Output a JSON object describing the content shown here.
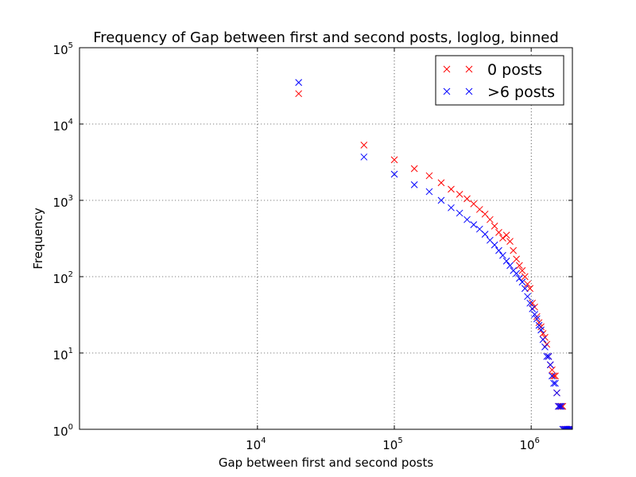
{
  "chart_data": {
    "type": "scatter",
    "title": "Frequency of Gap between first and second posts, loglog, binned",
    "xlabel": "Gap between first and second posts",
    "ylabel": "Frequency",
    "xscale": "log",
    "yscale": "log",
    "grid": true,
    "legend_position": "top-right",
    "xlim": [
      501,
      2000000
    ],
    "ylim": [
      1,
      100000
    ],
    "x_ticks": [
      {
        "base": "10",
        "exp": "4",
        "value": 10000
      },
      {
        "base": "10",
        "exp": "5",
        "value": 100000
      },
      {
        "base": "10",
        "exp": "6",
        "value": 1000000
      }
    ],
    "y_ticks": [
      {
        "base": "10",
        "exp": "0",
        "value": 1
      },
      {
        "base": "10",
        "exp": "1",
        "value": 10
      },
      {
        "base": "10",
        "exp": "2",
        "value": 100
      },
      {
        "base": "10",
        "exp": "3",
        "value": 1000
      },
      {
        "base": "10",
        "exp": "4",
        "value": 10000
      },
      {
        "base": "10",
        "exp": "5",
        "value": 100000
      }
    ],
    "series": [
      {
        "name": "0 posts",
        "color": "#ff0000",
        "marker": "x",
        "points": [
          [
            20000,
            25000
          ],
          [
            60000,
            5300
          ],
          [
            100000,
            3400
          ],
          [
            140000,
            2600
          ],
          [
            180000,
            2100
          ],
          [
            220000,
            1700
          ],
          [
            260000,
            1400
          ],
          [
            300000,
            1200
          ],
          [
            340000,
            1050
          ],
          [
            380000,
            900
          ],
          [
            420000,
            760
          ],
          [
            460000,
            660
          ],
          [
            500000,
            560
          ],
          [
            540000,
            460
          ],
          [
            580000,
            380
          ],
          [
            620000,
            320
          ],
          [
            660000,
            350
          ],
          [
            700000,
            290
          ],
          [
            740000,
            220
          ],
          [
            780000,
            170
          ],
          [
            820000,
            140
          ],
          [
            860000,
            120
          ],
          [
            900000,
            100
          ],
          [
            940000,
            80
          ],
          [
            980000,
            70
          ],
          [
            1020000,
            45
          ],
          [
            1060000,
            40
          ],
          [
            1100000,
            30
          ],
          [
            1140000,
            25
          ],
          [
            1180000,
            22
          ],
          [
            1220000,
            18
          ],
          [
            1260000,
            16
          ],
          [
            1300000,
            13
          ],
          [
            1340000,
            9
          ],
          [
            1380000,
            7
          ],
          [
            1420000,
            6
          ],
          [
            1460000,
            5
          ],
          [
            1500000,
            5
          ],
          [
            1540000,
            3
          ],
          [
            1580000,
            2
          ],
          [
            1620000,
            2
          ],
          [
            1660000,
            2
          ],
          [
            1700000,
            2
          ],
          [
            1740000,
            1
          ],
          [
            1780000,
            1
          ],
          [
            1820000,
            1
          ],
          [
            1860000,
            1
          ],
          [
            1900000,
            1
          ],
          [
            1940000,
            1
          ],
          [
            1980000,
            1
          ]
        ]
      },
      {
        "name": ">6 posts",
        "color": "#0000ff",
        "marker": "x",
        "points": [
          [
            20000,
            35000
          ],
          [
            60000,
            3700
          ],
          [
            100000,
            2200
          ],
          [
            140000,
            1600
          ],
          [
            180000,
            1300
          ],
          [
            220000,
            1000
          ],
          [
            260000,
            800
          ],
          [
            300000,
            680
          ],
          [
            340000,
            560
          ],
          [
            380000,
            480
          ],
          [
            420000,
            420
          ],
          [
            460000,
            360
          ],
          [
            500000,
            300
          ],
          [
            540000,
            260
          ],
          [
            580000,
            220
          ],
          [
            620000,
            190
          ],
          [
            660000,
            160
          ],
          [
            700000,
            140
          ],
          [
            740000,
            120
          ],
          [
            780000,
            110
          ],
          [
            820000,
            95
          ],
          [
            860000,
            85
          ],
          [
            900000,
            70
          ],
          [
            940000,
            55
          ],
          [
            980000,
            45
          ],
          [
            1020000,
            38
          ],
          [
            1060000,
            32
          ],
          [
            1100000,
            28
          ],
          [
            1140000,
            23
          ],
          [
            1180000,
            20
          ],
          [
            1220000,
            15
          ],
          [
            1260000,
            12
          ],
          [
            1300000,
            9
          ],
          [
            1340000,
            9
          ],
          [
            1380000,
            7
          ],
          [
            1420000,
            5
          ],
          [
            1460000,
            4
          ],
          [
            1500000,
            4
          ],
          [
            1540000,
            3
          ],
          [
            1580000,
            2
          ],
          [
            1620000,
            2
          ],
          [
            1660000,
            2
          ],
          [
            1700000,
            1
          ],
          [
            1740000,
            1
          ],
          [
            1780000,
            1
          ],
          [
            1820000,
            1
          ],
          [
            1860000,
            1
          ],
          [
            1900000,
            1
          ],
          [
            1940000,
            1
          ],
          [
            1980000,
            1
          ]
        ]
      }
    ]
  }
}
